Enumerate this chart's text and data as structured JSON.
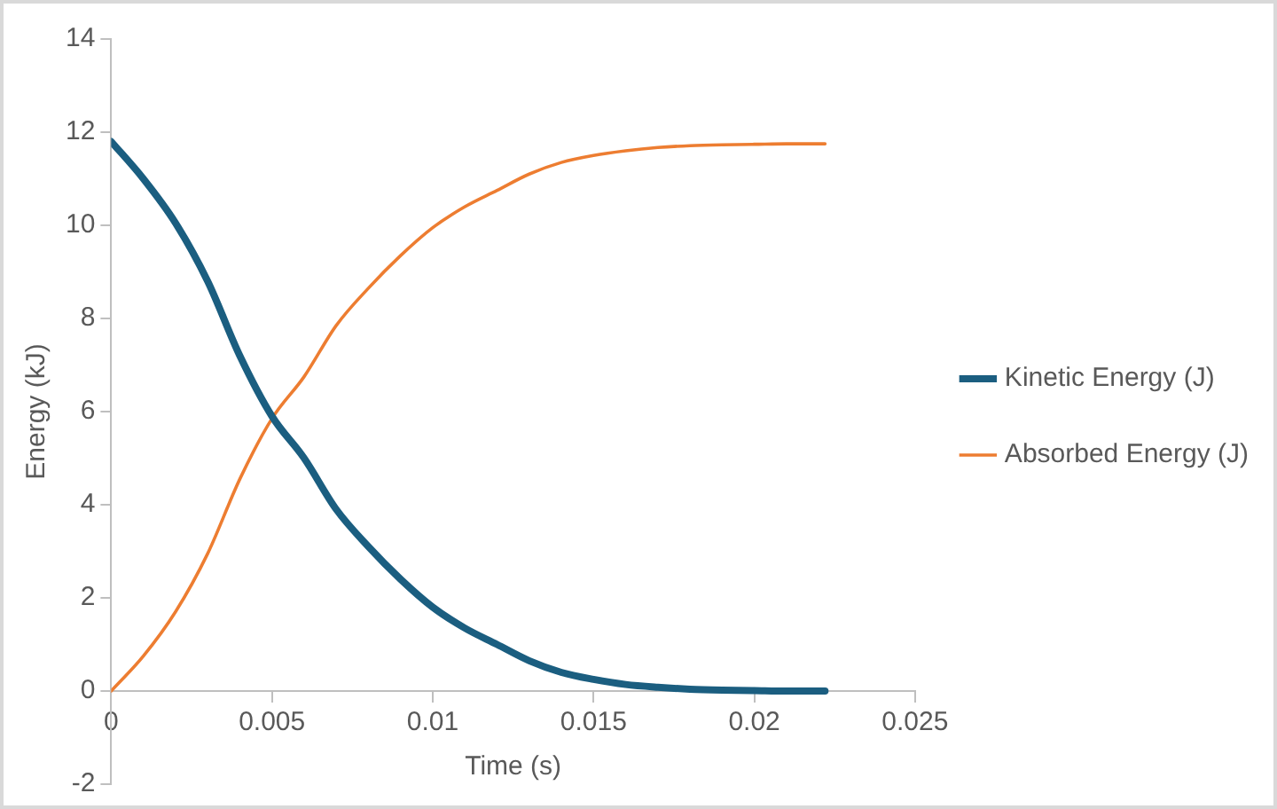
{
  "chart_data": {
    "type": "line",
    "xlabel": "Time (s)",
    "ylabel": "Energy (kJ)",
    "x": [
      0,
      0.001,
      0.002,
      0.003,
      0.004,
      0.005,
      0.006,
      0.007,
      0.008,
      0.009,
      0.01,
      0.011,
      0.012,
      0.013,
      0.014,
      0.015,
      0.016,
      0.017,
      0.018,
      0.019,
      0.02,
      0.021,
      0.0222
    ],
    "series": [
      {
        "name": "Kinetic Energy (J)",
        "color": "#1b5e80",
        "values": [
          11.8,
          11.0,
          10.05,
          8.8,
          7.2,
          5.9,
          5.0,
          3.9,
          3.1,
          2.4,
          1.8,
          1.35,
          1.0,
          0.65,
          0.4,
          0.25,
          0.14,
          0.08,
          0.04,
          0.02,
          0.01,
          0.0,
          0.0
        ]
      },
      {
        "name": "Absorbed Energy (J)",
        "color": "#ed7d31",
        "values": [
          0,
          0.75,
          1.7,
          2.95,
          4.55,
          5.85,
          6.75,
          7.85,
          8.65,
          9.35,
          9.95,
          10.4,
          10.75,
          11.1,
          11.35,
          11.5,
          11.6,
          11.67,
          11.71,
          11.73,
          11.74,
          11.75,
          11.75
        ]
      }
    ],
    "xlim": [
      0,
      0.025
    ],
    "xticks": [
      0,
      0.005,
      0.01,
      0.015,
      0.02,
      0.025
    ],
    "ylim": [
      -2,
      14
    ],
    "yticks": [
      -2,
      0,
      2,
      4,
      6,
      8,
      10,
      12,
      14
    ],
    "grid": false,
    "legend": "right",
    "marker": "none",
    "line_style": "solid"
  }
}
